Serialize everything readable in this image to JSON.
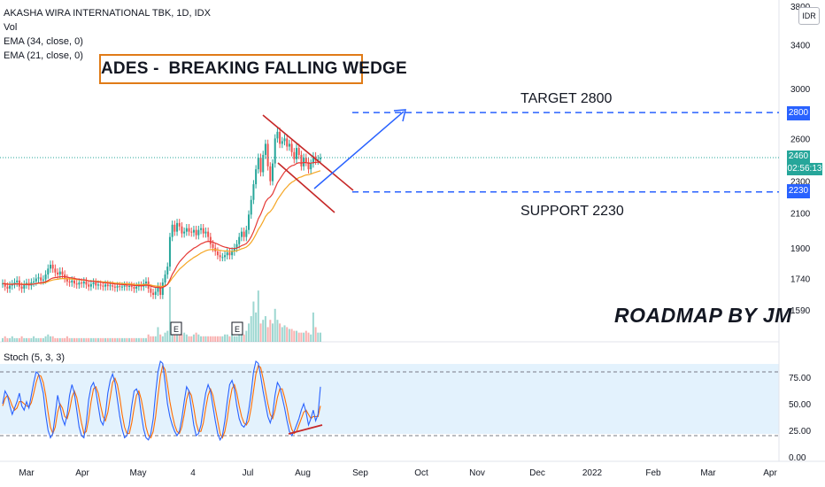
{
  "legend": {
    "symbol": "AKASHA WIRA INTERNATIONAL TBK, 1D, IDX",
    "vol": "Vol",
    "ema34": "EMA (34, close, 0)",
    "ema21": "EMA (21, close, 0)",
    "stoch": "Stoch (5, 3, 3)"
  },
  "annotations": {
    "title": "ADES -  BREAKING FALLING WEDGE",
    "target": "TARGET 2800",
    "support": "SUPPORT 2230",
    "author": "ROADMAP BY JM"
  },
  "price_tags": {
    "target": "2800",
    "current": "2460",
    "countdown": "02:56:13",
    "support": "2230"
  },
  "currency": "IDR",
  "earnings_marker": "E",
  "colors": {
    "up": "#26a69a",
    "down": "#ef5350",
    "ema34": "#f5a623",
    "ema21": "#e53935",
    "stoch_k": "#2962ff",
    "stoch_d": "#ff6d00",
    "target_line": "#2962ff",
    "wedge": "#c62828",
    "stoch_band": "#e3f2fd"
  },
  "chart_data": [
    {
      "type": "candlestick",
      "scale": "log",
      "y_ticks": [
        1590,
        1740,
        1900,
        2100,
        2300,
        2600,
        3000,
        3400,
        3800
      ],
      "x_ticks": [
        "Mar",
        "Apr",
        "May",
        "4",
        "Jul",
        "Aug",
        "Sep",
        "Oct",
        "Nov",
        "Dec",
        "2022",
        "Feb",
        "Mar",
        "Apr"
      ],
      "last_price": 2460,
      "target": 2800,
      "support": 2230,
      "closes": [
        1715,
        1700,
        1690,
        1705,
        1712,
        1720,
        1730,
        1700,
        1690,
        1710,
        1718,
        1705,
        1720,
        1725,
        1740,
        1745,
        1730,
        1735,
        1760,
        1790,
        1810,
        1790,
        1770,
        1760,
        1775,
        1760,
        1740,
        1725,
        1720,
        1730,
        1715,
        1710,
        1720,
        1715,
        1725,
        1710,
        1700,
        1712,
        1720,
        1705,
        1710,
        1705,
        1700,
        1710,
        1702,
        1706,
        1700,
        1695,
        1702,
        1700,
        1700,
        1705,
        1700,
        1703,
        1698,
        1690,
        1700,
        1705,
        1700,
        1715,
        1725,
        1690,
        1670,
        1660,
        1675,
        1700,
        1660,
        1720,
        1760,
        1800,
        1960,
        2030,
        1990,
        2040,
        2020,
        1980,
        1990,
        2010,
        1990,
        1985,
        2000,
        1970,
        2000,
        2010,
        1980,
        1990,
        1960,
        1920,
        1900,
        1880,
        1860,
        1850,
        1850,
        1860,
        1875,
        1860,
        1880,
        1900,
        1920,
        1960,
        1990,
        1960,
        2000,
        2090,
        2180,
        2280,
        2380,
        2460,
        2360,
        2480,
        2560,
        2400,
        2300,
        2420,
        2600,
        2650,
        2560,
        2580,
        2600,
        2540,
        2560,
        2500,
        2450,
        2530,
        2480,
        2400,
        2460,
        2430,
        2380,
        2420,
        2470,
        2440,
        2450,
        2460
      ],
      "volumes_m": [
        2,
        3,
        2,
        2,
        3,
        2,
        2,
        2,
        3,
        2,
        2,
        2,
        2,
        3,
        2,
        2,
        2,
        2,
        3,
        4,
        3,
        3,
        2,
        2,
        2,
        2,
        2,
        3,
        2,
        2,
        2,
        2,
        2,
        2,
        2,
        2,
        2,
        2,
        2,
        2,
        2,
        2,
        2,
        2,
        2,
        2,
        2,
        2,
        2,
        2,
        2,
        2,
        2,
        2,
        2,
        2,
        2,
        2,
        2,
        2,
        2,
        4,
        3,
        3,
        3,
        8,
        4,
        3,
        5,
        6,
        30,
        10,
        8,
        6,
        5,
        4,
        5,
        4,
        3,
        3,
        4,
        5,
        4,
        3,
        3,
        3,
        3,
        3,
        3,
        3,
        3,
        3,
        3,
        4,
        4,
        3,
        4,
        3,
        3,
        5,
        5,
        4,
        6,
        10,
        14,
        22,
        16,
        28,
        10,
        12,
        14,
        8,
        12,
        10,
        18,
        12,
        10,
        8,
        9,
        8,
        7,
        7,
        6,
        6,
        5,
        5,
        5,
        6,
        5,
        4,
        16,
        8,
        5,
        5
      ]
    },
    {
      "type": "line",
      "name": "Stoch (5, 3, 3)",
      "y_ticks": [
        0,
        25,
        50,
        75
      ],
      "y_tick_labels": [
        "0.00",
        "25.00",
        "50.00",
        "75.00"
      ],
      "bands": [
        20,
        80
      ],
      "k": [
        50,
        62,
        58,
        48,
        40,
        46,
        52,
        60,
        48,
        44,
        52,
        46,
        58,
        70,
        80,
        78,
        70,
        60,
        40,
        25,
        18,
        22,
        40,
        58,
        48,
        36,
        30,
        40,
        58,
        68,
        60,
        44,
        28,
        20,
        18,
        32,
        54,
        66,
        70,
        62,
        48,
        34,
        30,
        40,
        60,
        72,
        78,
        70,
        54,
        38,
        26,
        18,
        20,
        30,
        48,
        62,
        64,
        58,
        40,
        26,
        18,
        16,
        22,
        36,
        60,
        80,
        90,
        88,
        70,
        50,
        38,
        30,
        24,
        20,
        24,
        36,
        52,
        66,
        62,
        46,
        30,
        20,
        22,
        30,
        46,
        60,
        68,
        62,
        48,
        34,
        22,
        16,
        20,
        34,
        52,
        68,
        72,
        64,
        48,
        36,
        30,
        28,
        32,
        44,
        60,
        80,
        90,
        88,
        76,
        62,
        50,
        38,
        32,
        40,
        58,
        70,
        66,
        56,
        46,
        34,
        24,
        20,
        24,
        30,
        36,
        44,
        50,
        42,
        30,
        36,
        44,
        34,
        40,
        66
      ],
      "d": [
        48,
        55,
        58,
        54,
        48,
        44,
        46,
        52,
        52,
        50,
        48,
        47,
        51,
        60,
        70,
        77,
        76,
        70,
        58,
        42,
        28,
        22,
        28,
        42,
        50,
        46,
        38,
        36,
        44,
        56,
        62,
        56,
        44,
        32,
        22,
        24,
        36,
        52,
        64,
        66,
        60,
        48,
        38,
        34,
        42,
        56,
        70,
        74,
        68,
        56,
        40,
        28,
        22,
        22,
        32,
        46,
        58,
        62,
        54,
        42,
        28,
        20,
        18,
        24,
        38,
        58,
        76,
        86,
        82,
        68,
        52,
        40,
        30,
        24,
        22,
        28,
        40,
        54,
        62,
        58,
        46,
        32,
        24,
        24,
        32,
        46,
        58,
        64,
        58,
        46,
        34,
        22,
        18,
        24,
        36,
        52,
        64,
        68,
        60,
        48,
        38,
        32,
        30,
        34,
        46,
        62,
        78,
        86,
        84,
        74,
        62,
        50,
        40,
        36,
        44,
        56,
        64,
        64,
        56,
        46,
        34,
        26,
        22,
        24,
        30,
        36,
        42,
        44,
        40,
        36,
        38,
        38,
        38,
        48
      ]
    }
  ]
}
